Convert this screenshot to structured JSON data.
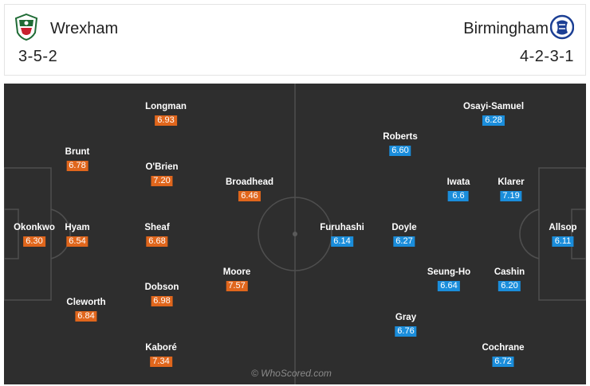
{
  "home": {
    "name": "Wrexham",
    "formation": "3-5-2",
    "players": [
      {
        "name": "Okonkwo",
        "rating": "6.30"
      },
      {
        "name": "Brunt",
        "rating": "6.78"
      },
      {
        "name": "Hyam",
        "rating": "6.54"
      },
      {
        "name": "Cleworth",
        "rating": "6.84"
      },
      {
        "name": "Longman",
        "rating": "6.93"
      },
      {
        "name": "O'Brien",
        "rating": "7.20"
      },
      {
        "name": "Sheaf",
        "rating": "6.68"
      },
      {
        "name": "Dobson",
        "rating": "6.98"
      },
      {
        "name": "Kaboré",
        "rating": "7.34"
      },
      {
        "name": "Broadhead",
        "rating": "6.46"
      },
      {
        "name": "Moore",
        "rating": "7.57"
      }
    ]
  },
  "away": {
    "name": "Birmingham",
    "formation": "4-2-3-1",
    "players": [
      {
        "name": "Osayi-Samuel",
        "rating": "6.28"
      },
      {
        "name": "Roberts",
        "rating": "6.60"
      },
      {
        "name": "Iwata",
        "rating": "6.6"
      },
      {
        "name": "Klarer",
        "rating": "7.19"
      },
      {
        "name": "Furuhashi",
        "rating": "6.14"
      },
      {
        "name": "Doyle",
        "rating": "6.27"
      },
      {
        "name": "Allsop",
        "rating": "6.11"
      },
      {
        "name": "Seung-Ho",
        "rating": "6.64"
      },
      {
        "name": "Cashin",
        "rating": "6.20"
      },
      {
        "name": "Gray",
        "rating": "6.76"
      },
      {
        "name": "Cochrane",
        "rating": "6.72"
      }
    ]
  },
  "watermark": "© WhoScored.com",
  "colors": {
    "home_rating": "#e0661c",
    "away_rating": "#1a8ddb",
    "pitch": "#2e2e2e"
  },
  "icons": {
    "home_crest": "wrexham-crest-icon",
    "away_crest": "birmingham-crest-icon"
  }
}
